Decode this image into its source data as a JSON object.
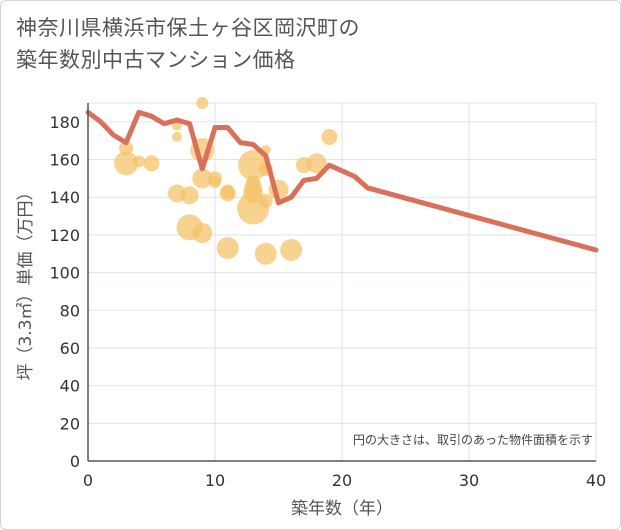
{
  "title_line1": "神奈川県横浜市保土ヶ谷区岡沢町の",
  "title_line2": "築年数別中古マンション価格",
  "chart_data": {
    "type": "scatter",
    "title": "神奈川県横浜市保土ヶ谷区岡沢町の築年数別中古マンション価格",
    "xlabel": "築年数（年）",
    "ylabel": "坪（3.3㎡）単価（万円）",
    "xlim": [
      0,
      40
    ],
    "ylim": [
      0,
      190
    ],
    "xticks": [
      0,
      10,
      20,
      30,
      40
    ],
    "yticks": [
      0,
      20,
      40,
      60,
      80,
      100,
      120,
      140,
      160,
      180
    ],
    "grid": true,
    "annotation": "円の大きさは、取引のあった物件面積を示す",
    "colors": {
      "bubble": "#f5c36a",
      "line": "#d9705a",
      "grid": "#dde3ea",
      "axis": "#555555"
    },
    "bubbles": [
      {
        "x": 3,
        "y": 166,
        "s": 7
      },
      {
        "x": 3,
        "y": 158,
        "s": 12
      },
      {
        "x": 4,
        "y": 159,
        "s": 6
      },
      {
        "x": 5,
        "y": 158,
        "s": 8
      },
      {
        "x": 7,
        "y": 178,
        "s": 5
      },
      {
        "x": 7,
        "y": 172,
        "s": 5
      },
      {
        "x": 7,
        "y": 142,
        "s": 9
      },
      {
        "x": 8,
        "y": 141,
        "s": 9
      },
      {
        "x": 8,
        "y": 124,
        "s": 13
      },
      {
        "x": 9,
        "y": 190,
        "s": 6
      },
      {
        "x": 9,
        "y": 165,
        "s": 12
      },
      {
        "x": 9,
        "y": 150,
        "s": 10
      },
      {
        "x": 9,
        "y": 121,
        "s": 10
      },
      {
        "x": 10,
        "y": 150,
        "s": 7
      },
      {
        "x": 10,
        "y": 148,
        "s": 6
      },
      {
        "x": 11,
        "y": 143,
        "s": 7
      },
      {
        "x": 11,
        "y": 142,
        "s": 8
      },
      {
        "x": 11,
        "y": 113,
        "s": 11
      },
      {
        "x": 13,
        "y": 157,
        "s": 15
      },
      {
        "x": 13,
        "y": 148,
        "s": 7
      },
      {
        "x": 13,
        "y": 145,
        "s": 9
      },
      {
        "x": 13,
        "y": 142,
        "s": 10
      },
      {
        "x": 13,
        "y": 134,
        "s": 16
      },
      {
        "x": 14,
        "y": 165,
        "s": 5
      },
      {
        "x": 14,
        "y": 155,
        "s": 7
      },
      {
        "x": 14,
        "y": 138,
        "s": 7
      },
      {
        "x": 14,
        "y": 110,
        "s": 11
      },
      {
        "x": 15,
        "y": 144,
        "s": 10
      },
      {
        "x": 16,
        "y": 112,
        "s": 11
      },
      {
        "x": 17,
        "y": 157,
        "s": 8
      },
      {
        "x": 18,
        "y": 158,
        "s": 10
      },
      {
        "x": 19,
        "y": 172,
        "s": 8
      }
    ],
    "line": {
      "x": [
        0,
        1,
        2,
        3,
        4,
        5,
        6,
        7,
        8,
        9,
        10,
        11,
        12,
        13,
        14,
        15,
        16,
        17,
        18,
        19,
        20,
        21,
        22,
        40
      ],
      "y": [
        185,
        180,
        173,
        169,
        185,
        183,
        179,
        181,
        179,
        155,
        177,
        177,
        169,
        168,
        162,
        137,
        140,
        149,
        150,
        157,
        154,
        151,
        145,
        112
      ]
    }
  }
}
